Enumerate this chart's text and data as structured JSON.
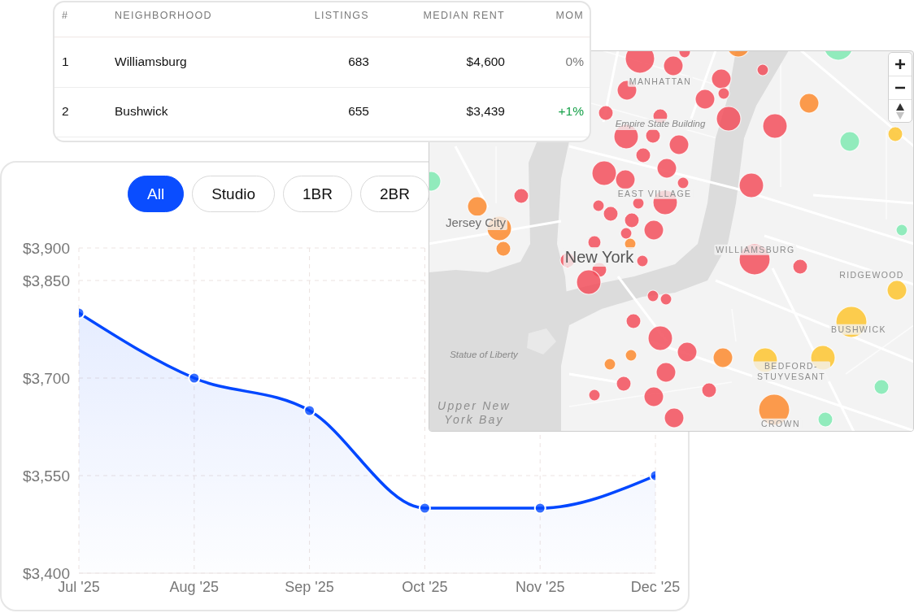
{
  "chart_data": [
    {
      "type": "other",
      "annotations": [
        "#",
        "NEIGHBORHOOD",
        "LISTINGS",
        "MEDIAN RENT",
        "MOM",
        "1",
        "Williamsburg",
        "683",
        "$4,600",
        "0%",
        "2",
        "Bushwick",
        "655",
        "$3,439",
        "+1%"
      ]
    },
    {
      "type": "area",
      "annotations": [
        "All",
        "Studio",
        "1BR",
        "2BR"
      ],
      "categories": [
        "Jul '25",
        "Aug '25",
        "Sep '25",
        "Oct '25",
        "Nov '25",
        "Dec '25"
      ],
      "values": [
        3800,
        3700,
        3650,
        3500,
        3500,
        3550
      ],
      "color": "#0047ff",
      "ylim": [
        3400,
        3900
      ],
      "yticks": [
        {
          "value": 3400,
          "label": "$3,400"
        },
        {
          "value": 3550,
          "label": "$3,550"
        },
        {
          "value": 3700,
          "label": "$3,700"
        },
        {
          "value": 3850,
          "label": "$3,850"
        },
        {
          "value": 3900,
          "label": "$3,900"
        }
      ],
      "grid": true,
      "marker": "circle",
      "line_style": "solid"
    },
    {
      "type": "other",
      "annotations": [
        "MANHATTAN",
        "Empire State Building",
        "EAST VILLAGE",
        "Jersey City",
        "New York",
        "WILLIAMSBURG",
        "RIDGEWOOD",
        "BUSHWICK",
        "Statue of Liberty",
        "BEDFORD-STUYVESANT",
        "CROWN",
        "Upper New York Bay"
      ]
    }
  ]
}
